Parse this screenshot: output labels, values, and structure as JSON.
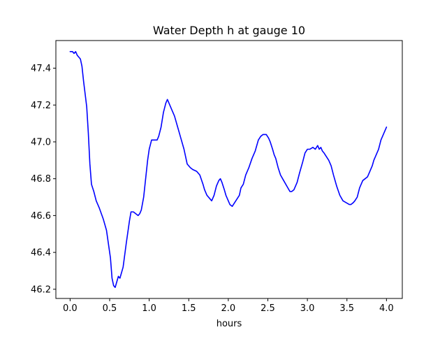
{
  "chart_data": {
    "type": "line",
    "title": "Water Depth h at gauge 10",
    "xlabel": "hours",
    "ylabel": "",
    "xlim": [
      -0.18,
      4.2
    ],
    "ylim": [
      46.15,
      47.55
    ],
    "xticks": [
      0.0,
      0.5,
      1.0,
      1.5,
      2.0,
      2.5,
      3.0,
      3.5,
      4.0
    ],
    "xtick_labels": [
      "0.0",
      "0.5",
      "1.0",
      "1.5",
      "2.0",
      "2.5",
      "3.0",
      "3.5",
      "4.0"
    ],
    "yticks": [
      46.2,
      46.4,
      46.6,
      46.8,
      47.0,
      47.2,
      47.4
    ],
    "ytick_labels": [
      "46.2",
      "46.4",
      "46.6",
      "46.8",
      "47.0",
      "47.2",
      "47.4"
    ],
    "grid": false,
    "legend": "none",
    "series": [
      {
        "color": "#0000ff",
        "x": [
          0.0,
          0.03,
          0.05,
          0.07,
          0.09,
          0.11,
          0.13,
          0.15,
          0.17,
          0.19,
          0.21,
          0.23,
          0.25,
          0.27,
          0.3,
          0.33,
          0.37,
          0.42,
          0.46,
          0.49,
          0.51,
          0.53,
          0.55,
          0.57,
          0.59,
          0.61,
          0.63,
          0.67,
          0.71,
          0.75,
          0.77,
          0.8,
          0.83,
          0.86,
          0.88,
          0.9,
          0.93,
          0.95,
          0.98,
          1.0,
          1.03,
          1.06,
          1.08,
          1.1,
          1.12,
          1.15,
          1.18,
          1.21,
          1.23,
          1.25,
          1.28,
          1.32,
          1.36,
          1.4,
          1.44,
          1.48,
          1.5,
          1.52,
          1.55,
          1.6,
          1.64,
          1.68,
          1.7,
          1.73,
          1.77,
          1.79,
          1.82,
          1.85,
          1.88,
          1.9,
          1.92,
          1.95,
          1.97,
          2.0,
          2.02,
          2.05,
          2.08,
          2.11,
          2.14,
          2.16,
          2.19,
          2.22,
          2.26,
          2.3,
          2.34,
          2.38,
          2.41,
          2.44,
          2.48,
          2.51,
          2.53,
          2.56,
          2.58,
          2.6,
          2.63,
          2.66,
          2.7,
          2.74,
          2.78,
          2.8,
          2.83,
          2.87,
          2.9,
          2.94,
          2.97,
          3.0,
          3.03,
          3.07,
          3.1,
          3.13,
          3.15,
          3.17,
          3.19,
          3.21,
          3.24,
          3.27,
          3.3,
          3.33,
          3.37,
          3.41,
          3.45,
          3.49,
          3.53,
          3.55,
          3.58,
          3.6,
          3.63,
          3.66,
          3.7,
          3.73,
          3.76,
          3.79,
          3.82,
          3.84,
          3.87,
          3.9,
          3.93,
          3.96,
          3.98,
          4.0
        ],
        "y": [
          47.49,
          47.49,
          47.48,
          47.49,
          47.47,
          47.46,
          47.45,
          47.41,
          47.33,
          47.26,
          47.19,
          47.05,
          46.88,
          46.77,
          46.73,
          46.68,
          46.64,
          46.58,
          46.52,
          46.43,
          46.37,
          46.26,
          46.22,
          46.21,
          46.24,
          46.27,
          46.26,
          46.32,
          46.45,
          46.57,
          46.62,
          46.62,
          46.61,
          46.6,
          46.61,
          46.63,
          46.7,
          46.78,
          46.9,
          46.96,
          47.01,
          47.01,
          47.01,
          47.01,
          47.03,
          47.08,
          47.16,
          47.21,
          47.23,
          47.21,
          47.18,
          47.14,
          47.08,
          47.02,
          46.96,
          46.88,
          46.87,
          46.86,
          46.85,
          46.84,
          46.82,
          46.77,
          46.74,
          46.71,
          46.69,
          46.68,
          46.71,
          46.76,
          46.79,
          46.8,
          46.78,
          46.74,
          46.71,
          46.68,
          46.66,
          46.65,
          46.67,
          46.69,
          46.71,
          46.75,
          46.77,
          46.82,
          46.86,
          46.91,
          46.95,
          47.01,
          47.03,
          47.04,
          47.04,
          47.02,
          47.0,
          46.96,
          46.93,
          46.91,
          46.86,
          46.82,
          46.79,
          46.76,
          46.73,
          46.73,
          46.74,
          46.78,
          46.83,
          46.89,
          46.94,
          46.96,
          46.96,
          46.97,
          46.96,
          46.98,
          46.96,
          46.97,
          46.95,
          46.94,
          46.92,
          46.9,
          46.87,
          46.82,
          46.76,
          46.71,
          46.68,
          46.67,
          46.66,
          46.66,
          46.67,
          46.68,
          46.7,
          46.75,
          46.79,
          46.8,
          46.81,
          46.84,
          46.87,
          46.9,
          46.93,
          46.96,
          47.01,
          47.04,
          47.06,
          47.08
        ]
      }
    ]
  }
}
